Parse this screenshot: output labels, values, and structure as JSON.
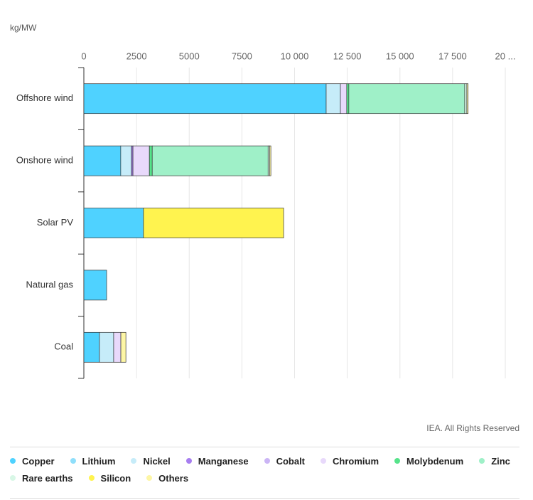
{
  "chart_data": {
    "type": "stacked-bar-horizontal",
    "unit_label": "kg/MW",
    "source": "IEA. All Rights Reserved",
    "categories": [
      "Offshore wind",
      "Onshore wind",
      "Solar PV",
      "Natural gas",
      "Coal"
    ],
    "series": [
      {
        "name": "Copper",
        "color": "#4fd2ff",
        "values": [
          11500,
          1750,
          2830,
          1080,
          740
        ]
      },
      {
        "name": "Lithium",
        "color": "#8fdffb",
        "values": [
          0,
          0,
          0,
          0,
          0
        ]
      },
      {
        "name": "Nickel",
        "color": "#c6ecf9",
        "values": [
          675,
          510,
          0,
          0,
          675
        ]
      },
      {
        "name": "Manganese",
        "color": "#a77ef0",
        "values": [
          0,
          70,
          0,
          0,
          0
        ]
      },
      {
        "name": "Cobalt",
        "color": "#cbb5f5",
        "values": [
          0,
          0,
          0,
          0,
          0
        ]
      },
      {
        "name": "Chromium",
        "color": "#e8d9fb",
        "values": [
          300,
          780,
          0,
          0,
          340
        ]
      },
      {
        "name": "Molybdenum",
        "color": "#56e38a",
        "values": [
          100,
          135,
          0,
          0,
          0
        ]
      },
      {
        "name": "Zinc",
        "color": "#9ff0c8",
        "values": [
          5500,
          5500,
          0,
          0,
          0
        ]
      },
      {
        "name": "Rare earths",
        "color": "#d8f7e6",
        "values": [
          100,
          70,
          0,
          0,
          0
        ]
      },
      {
        "name": "Silicon",
        "color": "#fff34f",
        "values": [
          0,
          0,
          6650,
          0,
          0
        ]
      },
      {
        "name": "Others",
        "color": "#fdf6a5",
        "values": [
          60,
          60,
          0,
          0,
          240
        ]
      }
    ],
    "xlim": [
      0,
      20000
    ],
    "xticks": [
      0,
      2500,
      5000,
      7500,
      {
        "value": 10000,
        "label": "10 000"
      },
      {
        "value": 12500,
        "label": "12 500"
      },
      {
        "value": 15000,
        "label": "15 000"
      },
      {
        "value": 17500,
        "label": "17 500"
      },
      {
        "value": 20000,
        "label": "20 ..."
      }
    ],
    "grid": true
  }
}
